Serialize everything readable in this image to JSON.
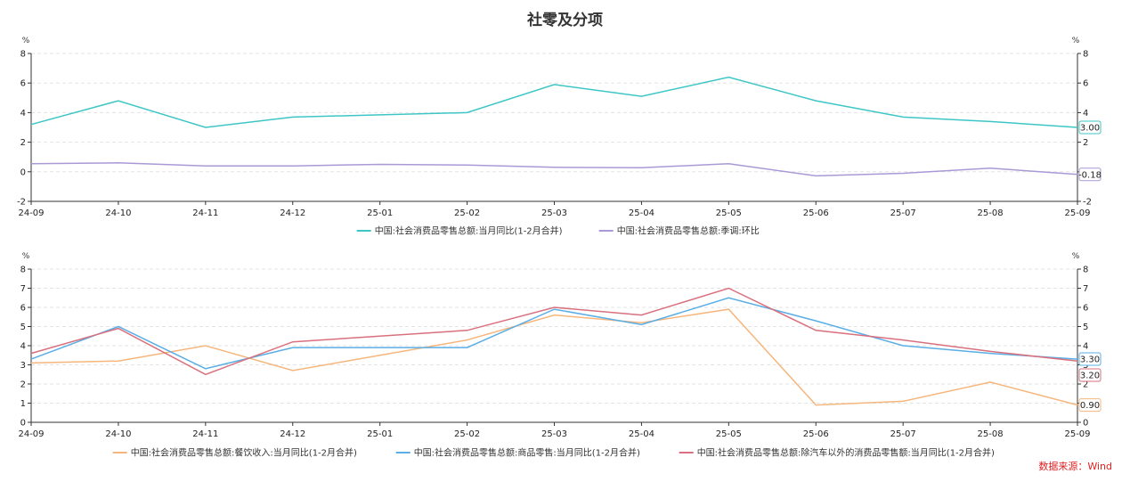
{
  "title": "社零及分项",
  "source": "数据来源：Wind",
  "chart_data": [
    {
      "type": "line",
      "categories": [
        "24-09",
        "24-10",
        "24-11",
        "24-12",
        "25-01",
        "25-02",
        "25-03",
        "25-04",
        "25-05",
        "25-06",
        "25-07",
        "25-08",
        "25-09"
      ],
      "ylim": [
        -2,
        8
      ],
      "yticks": [
        -2,
        0,
        2,
        4,
        6,
        8
      ],
      "yunit_left": "%",
      "yunit_right": "%",
      "grid": true,
      "legend_position": "bottom-center",
      "series": [
        {
          "name": "中国:社会消费品零售总额:当月同比(1-2月合并)",
          "color": "#3ec6c6",
          "values": [
            3.2,
            4.8,
            3.0,
            3.7,
            3.85,
            4.0,
            5.9,
            5.1,
            6.4,
            4.8,
            3.7,
            3.4,
            3.0
          ],
          "end_label": "3.00"
        },
        {
          "name": "中国:社会消费品零售总额:季调:环比",
          "color": "#a99ad6",
          "values": [
            0.55,
            0.6,
            0.4,
            0.4,
            0.5,
            0.45,
            0.3,
            0.27,
            0.55,
            -0.28,
            -0.1,
            0.25,
            -0.18
          ],
          "end_label": "-0.18"
        }
      ]
    },
    {
      "type": "line",
      "categories": [
        "24-09",
        "24-10",
        "24-11",
        "24-12",
        "25-01",
        "25-02",
        "25-03",
        "25-04",
        "25-05",
        "25-06",
        "25-07",
        "25-08",
        "25-09"
      ],
      "ylim": [
        0,
        8
      ],
      "yticks": [
        0,
        1,
        2,
        3,
        4,
        5,
        6,
        7,
        8
      ],
      "yunit_left": "%",
      "yunit_right": "%",
      "grid": true,
      "legend_position": "bottom-center",
      "series": [
        {
          "name": "中国:社会消费品零售总额:餐饮收入:当月同比(1-2月合并)",
          "color": "#f5b67d",
          "values": [
            3.1,
            3.2,
            4.0,
            2.7,
            3.5,
            4.3,
            5.6,
            5.2,
            5.9,
            0.9,
            1.1,
            2.1,
            0.9
          ],
          "end_label": "0.90"
        },
        {
          "name": "中国:社会消费品零售总额:商品零售:当月同比(1-2月合并)",
          "color": "#5aaee6",
          "values": [
            3.3,
            5.0,
            2.8,
            3.9,
            3.9,
            3.9,
            5.9,
            5.1,
            6.5,
            5.3,
            4.0,
            3.6,
            3.3
          ],
          "end_label": "3.30"
        },
        {
          "name": "中国:社会消费品零售总额:除汽车以外的消费品零售额:当月同比(1-2月合并)",
          "color": "#d9707e",
          "values": [
            3.6,
            4.9,
            2.5,
            4.2,
            4.5,
            4.8,
            6.0,
            5.6,
            7.0,
            4.8,
            4.3,
            3.7,
            3.2
          ],
          "end_label": "3.20"
        }
      ]
    }
  ]
}
